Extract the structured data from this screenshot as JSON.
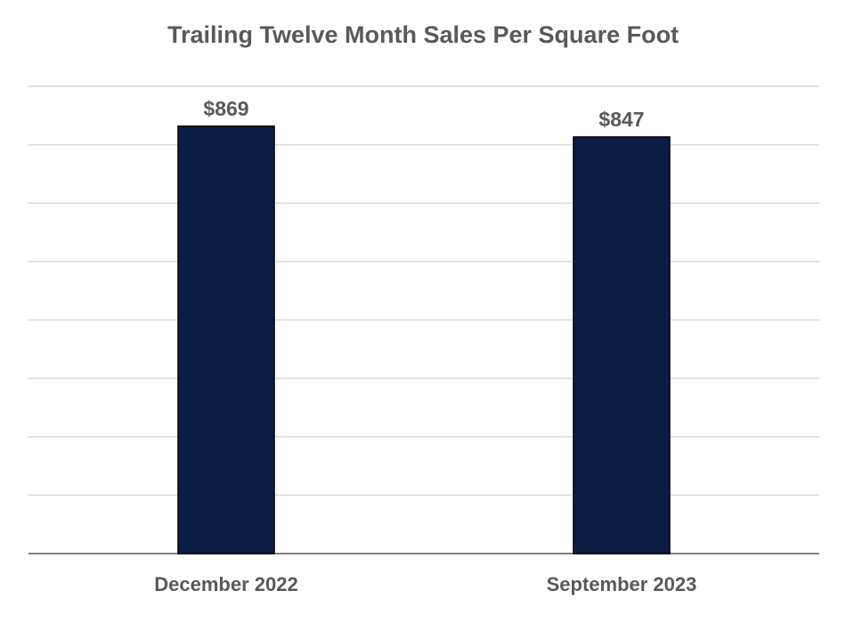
{
  "chart_data": {
    "type": "bar",
    "title": "Trailing Twelve Month Sales Per Square Foot",
    "categories": [
      "December 2022",
      "September 2023"
    ],
    "values": [
      869,
      847
    ],
    "data_labels": [
      "$869",
      "$847"
    ],
    "xlabel": "",
    "ylabel": "",
    "ylim": [
      0,
      950
    ],
    "y_tick_step": 118.75,
    "grid": true,
    "legend": "none",
    "colors": {
      "bar_fill": "#0d1d45",
      "bar_stroke": "#000000",
      "gridline": "#d9d9d9",
      "axis": "#7f7f7f",
      "text": "#595959"
    }
  }
}
